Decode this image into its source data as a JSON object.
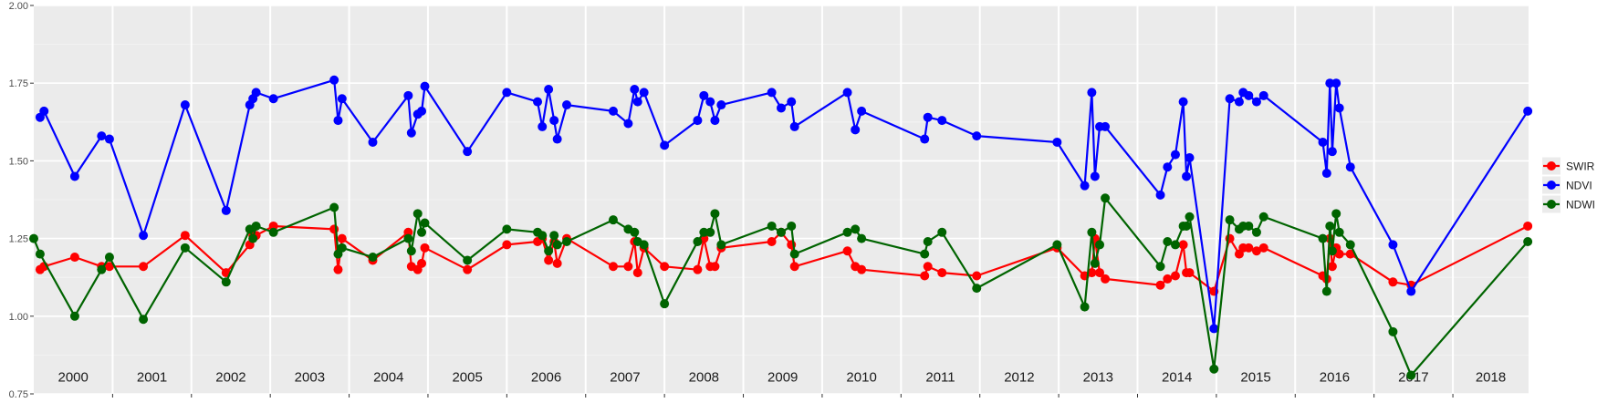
{
  "chart_data": {
    "type": "line",
    "title": "",
    "xlabel": "",
    "ylabel": "",
    "xlim": [
      2000.0,
      2018.96
    ],
    "ylim": [
      0.75,
      2.0
    ],
    "y_ticks": [
      "0.75",
      "1.00",
      "1.25",
      "1.50",
      "1.75",
      "2.00"
    ],
    "grid": true,
    "legend_position": "right",
    "year_labels": [
      "2000",
      "2001",
      "2002",
      "2003",
      "2004",
      "2005",
      "2006",
      "2007",
      "2008",
      "2009",
      "2010",
      "2011",
      "2012",
      "2013",
      "2014",
      "2015",
      "2016",
      "2017",
      "2018"
    ],
    "series": [
      {
        "name": "SWIR",
        "color": "#ff0000",
        "x": [
          2000.08,
          2000.13,
          2000.52,
          2000.86,
          2000.96,
          2001.39,
          2001.92,
          2002.44,
          2002.74,
          2002.78,
          2002.82,
          2003.04,
          2003.81,
          2003.86,
          2003.91,
          2004.3,
          2004.75,
          2004.79,
          2004.87,
          2004.92,
          2004.96,
          2005.5,
          2006.0,
          2006.39,
          2006.45,
          2006.53,
          2006.6,
          2006.64,
          2006.76,
          2007.35,
          2007.54,
          2007.62,
          2007.66,
          2007.74,
          2008.0,
          2008.42,
          2008.5,
          2008.58,
          2008.64,
          2008.72,
          2009.36,
          2009.48,
          2009.61,
          2009.65,
          2010.32,
          2010.42,
          2010.5,
          2011.3,
          2011.34,
          2011.52,
          2011.96,
          2012.98,
          2013.33,
          2013.42,
          2013.46,
          2013.52,
          2013.59,
          2014.29,
          2014.38,
          2014.48,
          2014.58,
          2014.62,
          2014.66,
          2014.97,
          2015.17,
          2015.29,
          2015.34,
          2015.41,
          2015.51,
          2015.6,
          2016.35,
          2016.4,
          2016.44,
          2016.47,
          2016.52,
          2016.56,
          2016.7,
          2017.24,
          2017.47,
          2018.95
        ],
        "values": [
          1.15,
          1.16,
          1.19,
          1.16,
          1.16,
          1.16,
          1.26,
          1.14,
          1.23,
          1.26,
          1.26,
          1.29,
          1.28,
          1.15,
          1.25,
          1.18,
          1.27,
          1.16,
          1.15,
          1.17,
          1.22,
          1.15,
          1.23,
          1.24,
          1.25,
          1.18,
          1.24,
          1.17,
          1.25,
          1.16,
          1.16,
          1.24,
          1.14,
          1.22,
          1.16,
          1.15,
          1.25,
          1.16,
          1.16,
          1.22,
          1.24,
          1.27,
          1.23,
          1.16,
          1.21,
          1.16,
          1.15,
          1.13,
          1.16,
          1.14,
          1.13,
          1.22,
          1.13,
          1.14,
          1.25,
          1.14,
          1.12,
          1.1,
          1.12,
          1.13,
          1.23,
          1.14,
          1.14,
          1.08,
          1.25,
          1.2,
          1.22,
          1.22,
          1.21,
          1.22,
          1.13,
          1.12,
          1.25,
          1.16,
          1.22,
          1.2,
          1.2,
          1.11,
          1.1,
          1.29
        ]
      },
      {
        "name": "NDVI",
        "color": "#0000ff",
        "x": [
          2000.08,
          2000.13,
          2000.52,
          2000.86,
          2000.96,
          2001.39,
          2001.92,
          2002.44,
          2002.74,
          2002.78,
          2002.82,
          2003.04,
          2003.81,
          2003.86,
          2003.91,
          2004.3,
          2004.75,
          2004.79,
          2004.87,
          2004.92,
          2004.96,
          2005.5,
          2006.0,
          2006.39,
          2006.45,
          2006.53,
          2006.6,
          2006.64,
          2006.76,
          2007.35,
          2007.54,
          2007.62,
          2007.66,
          2007.74,
          2008.0,
          2008.42,
          2008.5,
          2008.58,
          2008.64,
          2008.72,
          2009.36,
          2009.48,
          2009.61,
          2009.65,
          2010.32,
          2010.42,
          2010.5,
          2011.3,
          2011.34,
          2011.52,
          2011.96,
          2012.98,
          2013.33,
          2013.42,
          2013.46,
          2013.52,
          2013.59,
          2014.29,
          2014.38,
          2014.48,
          2014.58,
          2014.62,
          2014.66,
          2014.97,
          2015.17,
          2015.29,
          2015.34,
          2015.41,
          2015.51,
          2015.6,
          2016.35,
          2016.4,
          2016.44,
          2016.47,
          2016.52,
          2016.56,
          2016.7,
          2017.24,
          2017.47,
          2018.95
        ],
        "values": [
          1.64,
          1.66,
          1.45,
          1.58,
          1.57,
          1.26,
          1.68,
          1.34,
          1.68,
          1.7,
          1.72,
          1.7,
          1.76,
          1.63,
          1.7,
          1.56,
          1.71,
          1.59,
          1.65,
          1.66,
          1.74,
          1.53,
          1.72,
          1.69,
          1.61,
          1.73,
          1.63,
          1.57,
          1.68,
          1.66,
          1.62,
          1.73,
          1.69,
          1.72,
          1.55,
          1.63,
          1.71,
          1.69,
          1.63,
          1.68,
          1.72,
          1.67,
          1.69,
          1.61,
          1.72,
          1.6,
          1.66,
          1.57,
          1.64,
          1.63,
          1.58,
          1.56,
          1.42,
          1.72,
          1.45,
          1.61,
          1.61,
          1.39,
          1.48,
          1.52,
          1.69,
          1.45,
          1.51,
          0.96,
          1.7,
          1.69,
          1.72,
          1.71,
          1.69,
          1.71,
          1.56,
          1.46,
          1.75,
          1.53,
          1.75,
          1.67,
          1.48,
          1.23,
          1.08,
          1.66
        ]
      },
      {
        "name": "NDWI",
        "color": "#006400",
        "x": [
          2000.0,
          2000.08,
          2000.52,
          2000.86,
          2000.96,
          2001.39,
          2001.92,
          2002.44,
          2002.74,
          2002.78,
          2002.82,
          2003.04,
          2003.81,
          2003.86,
          2003.91,
          2004.3,
          2004.75,
          2004.79,
          2004.87,
          2004.92,
          2004.96,
          2005.5,
          2006.0,
          2006.39,
          2006.45,
          2006.53,
          2006.6,
          2006.64,
          2006.76,
          2007.35,
          2007.54,
          2007.62,
          2007.66,
          2007.74,
          2008.0,
          2008.42,
          2008.5,
          2008.58,
          2008.64,
          2008.72,
          2009.36,
          2009.48,
          2009.61,
          2009.65,
          2010.32,
          2010.42,
          2010.5,
          2011.3,
          2011.34,
          2011.52,
          2011.96,
          2012.98,
          2013.33,
          2013.42,
          2013.46,
          2013.52,
          2013.59,
          2014.29,
          2014.38,
          2014.48,
          2014.58,
          2014.62,
          2014.66,
          2014.97,
          2015.17,
          2015.29,
          2015.34,
          2015.41,
          2015.51,
          2015.6,
          2016.35,
          2016.4,
          2016.44,
          2016.47,
          2016.52,
          2016.56,
          2016.7,
          2017.24,
          2017.47,
          2018.95
        ],
        "values": [
          1.25,
          1.2,
          1.0,
          1.15,
          1.19,
          0.99,
          1.22,
          1.11,
          1.28,
          1.25,
          1.29,
          1.27,
          1.35,
          1.2,
          1.22,
          1.19,
          1.25,
          1.21,
          1.33,
          1.27,
          1.3,
          1.18,
          1.28,
          1.27,
          1.26,
          1.21,
          1.26,
          1.23,
          1.24,
          1.31,
          1.28,
          1.27,
          1.24,
          1.23,
          1.04,
          1.24,
          1.27,
          1.27,
          1.33,
          1.23,
          1.29,
          1.27,
          1.29,
          1.2,
          1.27,
          1.28,
          1.25,
          1.2,
          1.24,
          1.27,
          1.09,
          1.23,
          1.03,
          1.27,
          1.17,
          1.23,
          1.38,
          1.16,
          1.24,
          1.23,
          1.29,
          1.29,
          1.32,
          0.83,
          1.31,
          1.28,
          1.29,
          1.29,
          1.27,
          1.32,
          1.25,
          1.08,
          1.29,
          1.21,
          1.33,
          1.27,
          1.23,
          0.95,
          0.81,
          1.24
        ]
      }
    ]
  }
}
